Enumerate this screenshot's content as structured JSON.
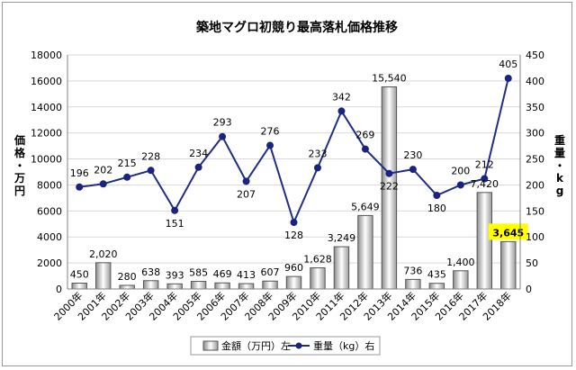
{
  "chart_data": {
    "type": "bar+line",
    "title": "築地マグロ初競り最高落札価格推移",
    "categories": [
      "2000年",
      "2001年",
      "2002年",
      "2003年",
      "2004年",
      "2005年",
      "2006年",
      "2007年",
      "2008年",
      "2009年",
      "2010年",
      "2011年",
      "2012年",
      "2013年",
      "2014年",
      "2015年",
      "2016年",
      "2017年",
      "2018年"
    ],
    "series": [
      {
        "name": "金額（万円）左",
        "type": "bar",
        "axis": "left",
        "values": [
          450,
          2020,
          280,
          638,
          393,
          585,
          469,
          413,
          607,
          960,
          1628,
          3249,
          5649,
          15540,
          736,
          435,
          1400,
          7420,
          3645
        ],
        "labels": [
          "450",
          "2,020",
          "280",
          "638",
          "393",
          "585",
          "469",
          "413",
          "607",
          "960",
          "1,628",
          "3,249",
          "5,649",
          "15,540",
          "736",
          "435",
          "1,400",
          "7,420",
          "3,645"
        ]
      },
      {
        "name": "重量（kg）右",
        "type": "line",
        "axis": "right",
        "values": [
          196,
          202,
          215,
          228,
          151,
          234,
          293,
          207,
          276,
          128,
          233,
          342,
          269,
          222,
          230,
          180,
          200,
          212,
          405
        ],
        "labels": [
          "196",
          "202",
          "215",
          "228",
          "151",
          "234",
          "293",
          "207",
          "276",
          "128",
          "233",
          "342",
          "269",
          "222",
          "230",
          "180",
          "200",
          "212",
          "405"
        ]
      }
    ],
    "ylabel_left": "価格・万円",
    "ylabel_right": "重量・kg",
    "ylim_left": [
      0,
      18000
    ],
    "ylim_right": [
      0,
      450
    ],
    "yticks_left": [
      "0",
      "2000",
      "4000",
      "6000",
      "8000",
      "10000",
      "12000",
      "14000",
      "16000",
      "18000"
    ],
    "yticks_right": [
      "0",
      "50",
      "100",
      "150",
      "200",
      "250",
      "300",
      "350",
      "400",
      "450"
    ],
    "grid": true,
    "legend": "bottom",
    "highlight": {
      "category": "2018年",
      "label": "3,645",
      "color": "#ffff00"
    },
    "colors": {
      "line": "#1f2d86",
      "marker": "#1a237e",
      "bar_stroke": "#555555",
      "grid": "#d9d9d9"
    }
  }
}
